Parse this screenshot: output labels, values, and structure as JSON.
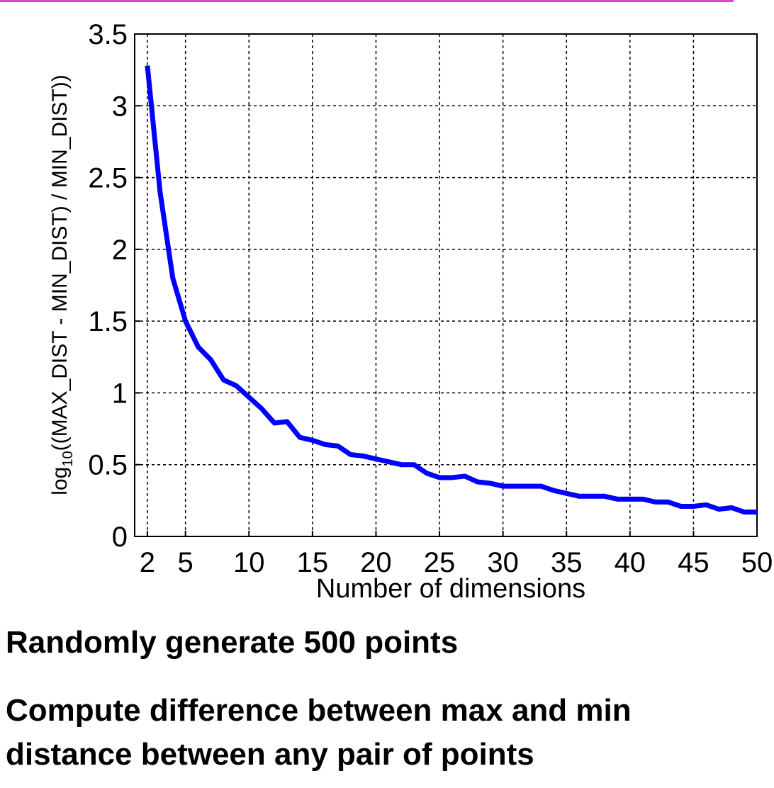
{
  "chart_data": {
    "type": "line",
    "xlabel": "Number of dimensions",
    "ylabel": {
      "prefix": "log",
      "subscript": "10",
      "text": "((MAX_DIST - MIN_DIST) / MIN_DIST))"
    },
    "x": [
      2,
      3,
      4,
      5,
      6,
      7,
      8,
      9,
      10,
      11,
      12,
      13,
      14,
      15,
      16,
      17,
      18,
      19,
      20,
      21,
      22,
      23,
      24,
      25,
      26,
      27,
      28,
      29,
      30,
      31,
      32,
      33,
      34,
      35,
      36,
      37,
      38,
      39,
      40,
      41,
      42,
      43,
      44,
      45,
      46,
      47,
      48,
      49,
      50
    ],
    "series": [
      {
        "color": "#0000ff",
        "values": [
          3.28,
          2.4,
          1.8,
          1.5,
          1.32,
          1.23,
          1.09,
          1.05,
          0.97,
          0.89,
          0.79,
          0.8,
          0.69,
          0.67,
          0.64,
          0.63,
          0.57,
          0.56,
          0.54,
          0.52,
          0.5,
          0.5,
          0.44,
          0.41,
          0.41,
          0.42,
          0.38,
          0.37,
          0.35,
          0.35,
          0.35,
          0.35,
          0.32,
          0.3,
          0.28,
          0.28,
          0.28,
          0.26,
          0.26,
          0.26,
          0.24,
          0.24,
          0.21,
          0.21,
          0.22,
          0.19,
          0.2,
          0.17,
          0.17
        ]
      }
    ],
    "xlim": [
      1,
      50
    ],
    "ylim": [
      0,
      3.5
    ],
    "xticks": [
      2,
      5,
      10,
      15,
      20,
      25,
      30,
      35,
      40,
      45,
      50
    ],
    "yticks": [
      0,
      0.5,
      1,
      1.5,
      2,
      2.5,
      3,
      3.5
    ],
    "grid": true
  },
  "notes": [
    "Randomly generate 500 points",
    "Compute difference between max and min distance between any pair of points"
  ]
}
